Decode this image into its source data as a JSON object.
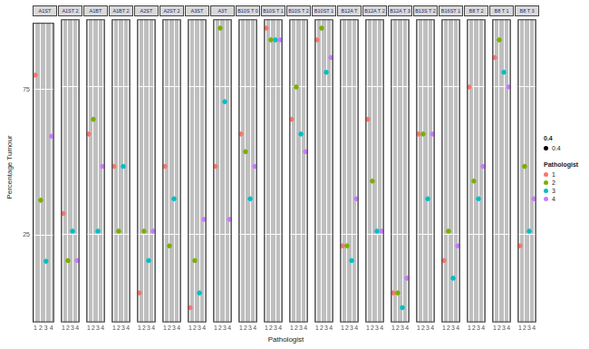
{
  "chart_data": {
    "type": "scatter",
    "x_label": "Pathologist",
    "y_label": "Percentage Tumour",
    "categories": [
      "1",
      "2",
      "3",
      "4"
    ],
    "colors": [
      "#F8766D",
      "#7CAE00",
      "#00BFC4",
      "#C77CFF"
    ],
    "legend_title": "Pathologist",
    "size_legend": {
      "title": "0.4",
      "label": "0.4"
    },
    "ylim": [
      -5,
      98
    ],
    "yticks": [
      25,
      75
    ],
    "grid": true,
    "panels": [
      {
        "title": "A1ST",
        "values": [
          80,
          37,
          16,
          59
        ]
      },
      {
        "title": "A1ST 2",
        "values": [
          32,
          16,
          26,
          16
        ]
      },
      {
        "title": "A1BT",
        "values": [
          59,
          64,
          26,
          48
        ]
      },
      {
        "title": "A1BT 2",
        "values": [
          48,
          26,
          48,
          null
        ]
      },
      {
        "title": "A2ST",
        "values": [
          5,
          26,
          16,
          26
        ]
      },
      {
        "title": "A2ST 2",
        "values": [
          48,
          21,
          37,
          null
        ]
      },
      {
        "title": "A3ST",
        "values": [
          0,
          16,
          5,
          30
        ]
      },
      {
        "title": "A3T",
        "values": [
          48,
          95,
          70,
          30
        ]
      },
      {
        "title": "B10S T 0",
        "values": [
          59,
          53,
          37,
          48
        ]
      },
      {
        "title": "B10S T 1",
        "values": [
          95,
          91,
          91,
          91
        ]
      },
      {
        "title": "B10S T 2",
        "values": [
          64,
          75,
          59,
          53
        ]
      },
      {
        "title": "B10ST 1",
        "values": [
          91,
          95,
          80,
          85
        ]
      },
      {
        "title": "B12A T",
        "values": [
          21,
          21,
          16,
          37
        ]
      },
      {
        "title": "B12A T 2",
        "values": [
          64,
          43,
          26,
          26
        ]
      },
      {
        "title": "B12A T 3",
        "values": [
          5,
          5,
          0,
          10
        ]
      },
      {
        "title": "B13S T 2",
        "values": [
          59,
          59,
          37,
          59
        ]
      },
      {
        "title": "B16ST 1",
        "values": [
          16,
          26,
          10,
          21
        ]
      },
      {
        "title": "B8 T 2",
        "values": [
          75,
          43,
          37,
          48
        ]
      },
      {
        "title": "B8 T 1",
        "values": [
          85,
          91,
          80,
          75
        ]
      },
      {
        "title": "B8 T 3",
        "values": [
          21,
          48,
          26,
          37
        ]
      }
    ]
  }
}
